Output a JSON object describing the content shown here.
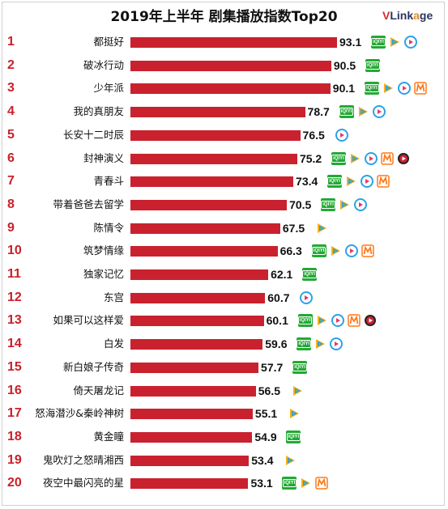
{
  "chart_data": {
    "type": "bar",
    "title": "2019年上半年 剧集播放指数Top20",
    "orientation": "horizontal",
    "value_range": [
      0,
      100
    ],
    "bar_color": "#c9222e",
    "rank_color": "#c9202b",
    "platform_colors": {
      "iqiyi": "#22a933",
      "tencent": "#2e9be6",
      "youku": "#2aa3e8",
      "mgtv": "#ff7a1a",
      "pptv": "#cc2233"
    },
    "rows": [
      {
        "rank": "1",
        "name": "都挺好",
        "value": 93.1,
        "value_label": "93.1",
        "platforms": [
          "iqiyi-icon",
          "tencent-icon",
          "youku-icon"
        ]
      },
      {
        "rank": "2",
        "name": "破冰行动",
        "value": 90.5,
        "value_label": "90.5",
        "platforms": [
          "iqiyi-icon"
        ]
      },
      {
        "rank": "3",
        "name": "少年派",
        "value": 90.1,
        "value_label": "90.1",
        "platforms": [
          "iqiyi-icon",
          "tencent-icon",
          "youku-icon",
          "mgtv-icon"
        ]
      },
      {
        "rank": "4",
        "name": "我的真朋友",
        "value": 78.7,
        "value_label": "78.7",
        "platforms": [
          "iqiyi-icon",
          "tencent-icon",
          "youku-icon"
        ]
      },
      {
        "rank": "5",
        "name": "长安十二时辰",
        "value": 76.5,
        "value_label": "76.5",
        "platforms": [
          "youku-icon"
        ]
      },
      {
        "rank": "6",
        "name": "封神演义",
        "value": 75.2,
        "value_label": "75.2",
        "platforms": [
          "iqiyi-icon",
          "tencent-icon",
          "youku-icon",
          "mgtv-icon",
          "pptv-icon"
        ]
      },
      {
        "rank": "7",
        "name": "青春斗",
        "value": 73.4,
        "value_label": "73.4",
        "platforms": [
          "iqiyi-icon",
          "tencent-icon",
          "youku-icon",
          "mgtv-icon"
        ]
      },
      {
        "rank": "8",
        "name": "带着爸爸去留学",
        "value": 70.5,
        "value_label": "70.5",
        "platforms": [
          "iqiyi-icon",
          "tencent-icon",
          "youku-icon"
        ]
      },
      {
        "rank": "9",
        "name": "陈情令",
        "value": 67.5,
        "value_label": "67.5",
        "platforms": [
          "tencent-icon"
        ]
      },
      {
        "rank": "10",
        "name": "筑梦情缘",
        "value": 66.3,
        "value_label": "66.3",
        "platforms": [
          "iqiyi-icon",
          "tencent-icon",
          "youku-icon",
          "mgtv-icon"
        ]
      },
      {
        "rank": "11",
        "name": "独家记忆",
        "value": 62.1,
        "value_label": "62.1",
        "platforms": [
          "iqiyi-icon"
        ]
      },
      {
        "rank": "12",
        "name": "东宫",
        "value": 60.7,
        "value_label": "60.7",
        "platforms": [
          "youku-icon"
        ]
      },
      {
        "rank": "13",
        "name": "如果可以这样爱",
        "value": 60.1,
        "value_label": "60.1",
        "platforms": [
          "iqiyi-icon",
          "tencent-icon",
          "youku-icon",
          "mgtv-icon",
          "pptv-icon"
        ]
      },
      {
        "rank": "14",
        "name": "白发",
        "value": 59.6,
        "value_label": "59.6",
        "platforms": [
          "iqiyi-icon",
          "tencent-icon",
          "youku-icon"
        ]
      },
      {
        "rank": "15",
        "name": "新白娘子传奇",
        "value": 57.7,
        "value_label": "57.7",
        "platforms": [
          "iqiyi-icon"
        ]
      },
      {
        "rank": "16",
        "name": "倚天屠龙记",
        "value": 56.5,
        "value_label": "56.5",
        "platforms": [
          "tencent-icon"
        ]
      },
      {
        "rank": "17",
        "name": "怒海潜沙&秦岭神树",
        "value": 55.1,
        "value_label": "55.1",
        "platforms": [
          "tencent-icon"
        ]
      },
      {
        "rank": "18",
        "name": "黄金瞳",
        "value": 54.9,
        "value_label": "54.9",
        "platforms": [
          "iqiyi-icon"
        ]
      },
      {
        "rank": "19",
        "name": "鬼吹灯之怒晴湘西",
        "value": 53.4,
        "value_label": "53.4",
        "platforms": [
          "tencent-icon"
        ]
      },
      {
        "rank": "20",
        "name": "夜空中最闪亮的星",
        "value": 53.1,
        "value_label": "53.1",
        "platforms": [
          "iqiyi-icon",
          "tencent-icon",
          "mgtv-icon"
        ]
      }
    ]
  },
  "logo": {
    "v": "V",
    "rest": "Link",
    "dot": "a",
    "tail": "ge"
  },
  "platform_labels": {
    "iqiyi": "iQIYI"
  }
}
